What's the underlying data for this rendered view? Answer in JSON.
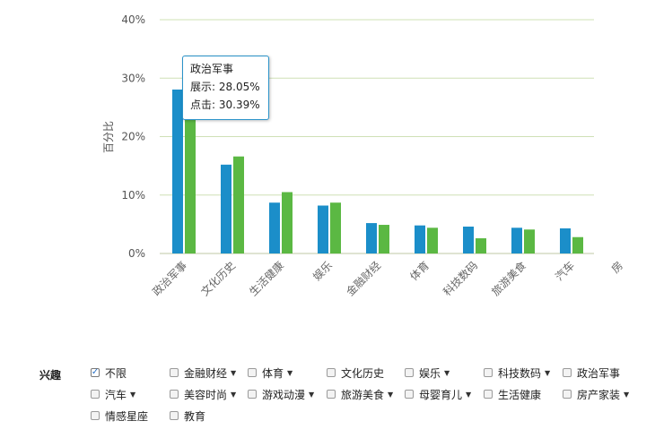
{
  "chart_data": {
    "type": "bar",
    "ylabel": "百分比",
    "ylim": [
      0,
      40
    ],
    "yticks": [
      "0%",
      "10%",
      "20%",
      "30%",
      "40%"
    ],
    "categories": [
      "政治军事",
      "文化历史",
      "生活健康",
      "娱乐",
      "金融财经",
      "体育",
      "科技数码",
      "旅游美食",
      "汽车",
      "房"
    ],
    "series": [
      {
        "name": "展示",
        "color": "#1b8ec9",
        "values": [
          28.05,
          15.2,
          8.7,
          8.2,
          5.2,
          4.8,
          4.6,
          4.4,
          4.3,
          null
        ]
      },
      {
        "name": "点击",
        "color": "#5bb843",
        "values": [
          30.39,
          16.6,
          10.5,
          8.7,
          4.9,
          4.4,
          2.6,
          4.1,
          2.8,
          null
        ]
      }
    ],
    "grid": true
  },
  "tooltip": {
    "title": "政治军事",
    "line1": "展示: 28.05%",
    "line2": "点击: 30.39%"
  },
  "filter": {
    "label": "兴趣",
    "options": [
      {
        "label": "不限",
        "checked": true,
        "dropdown": false
      },
      {
        "label": "金融财经",
        "checked": false,
        "dropdown": true
      },
      {
        "label": "体育",
        "checked": false,
        "dropdown": true
      },
      {
        "label": "文化历史",
        "checked": false,
        "dropdown": false
      },
      {
        "label": "娱乐",
        "checked": false,
        "dropdown": true
      },
      {
        "label": "科技数码",
        "checked": false,
        "dropdown": true
      },
      {
        "label": "政治军事",
        "checked": false,
        "dropdown": false
      },
      {
        "label": "汽车",
        "checked": false,
        "dropdown": true
      },
      {
        "label": "美容时尚",
        "checked": false,
        "dropdown": true
      },
      {
        "label": "游戏动漫",
        "checked": false,
        "dropdown": true
      },
      {
        "label": "旅游美食",
        "checked": false,
        "dropdown": true
      },
      {
        "label": "母婴育儿",
        "checked": false,
        "dropdown": true
      },
      {
        "label": "生活健康",
        "checked": false,
        "dropdown": false
      },
      {
        "label": "房产家装",
        "checked": false,
        "dropdown": true
      },
      {
        "label": "情感星座",
        "checked": false,
        "dropdown": false
      },
      {
        "label": "教育",
        "checked": false,
        "dropdown": false
      }
    ]
  }
}
